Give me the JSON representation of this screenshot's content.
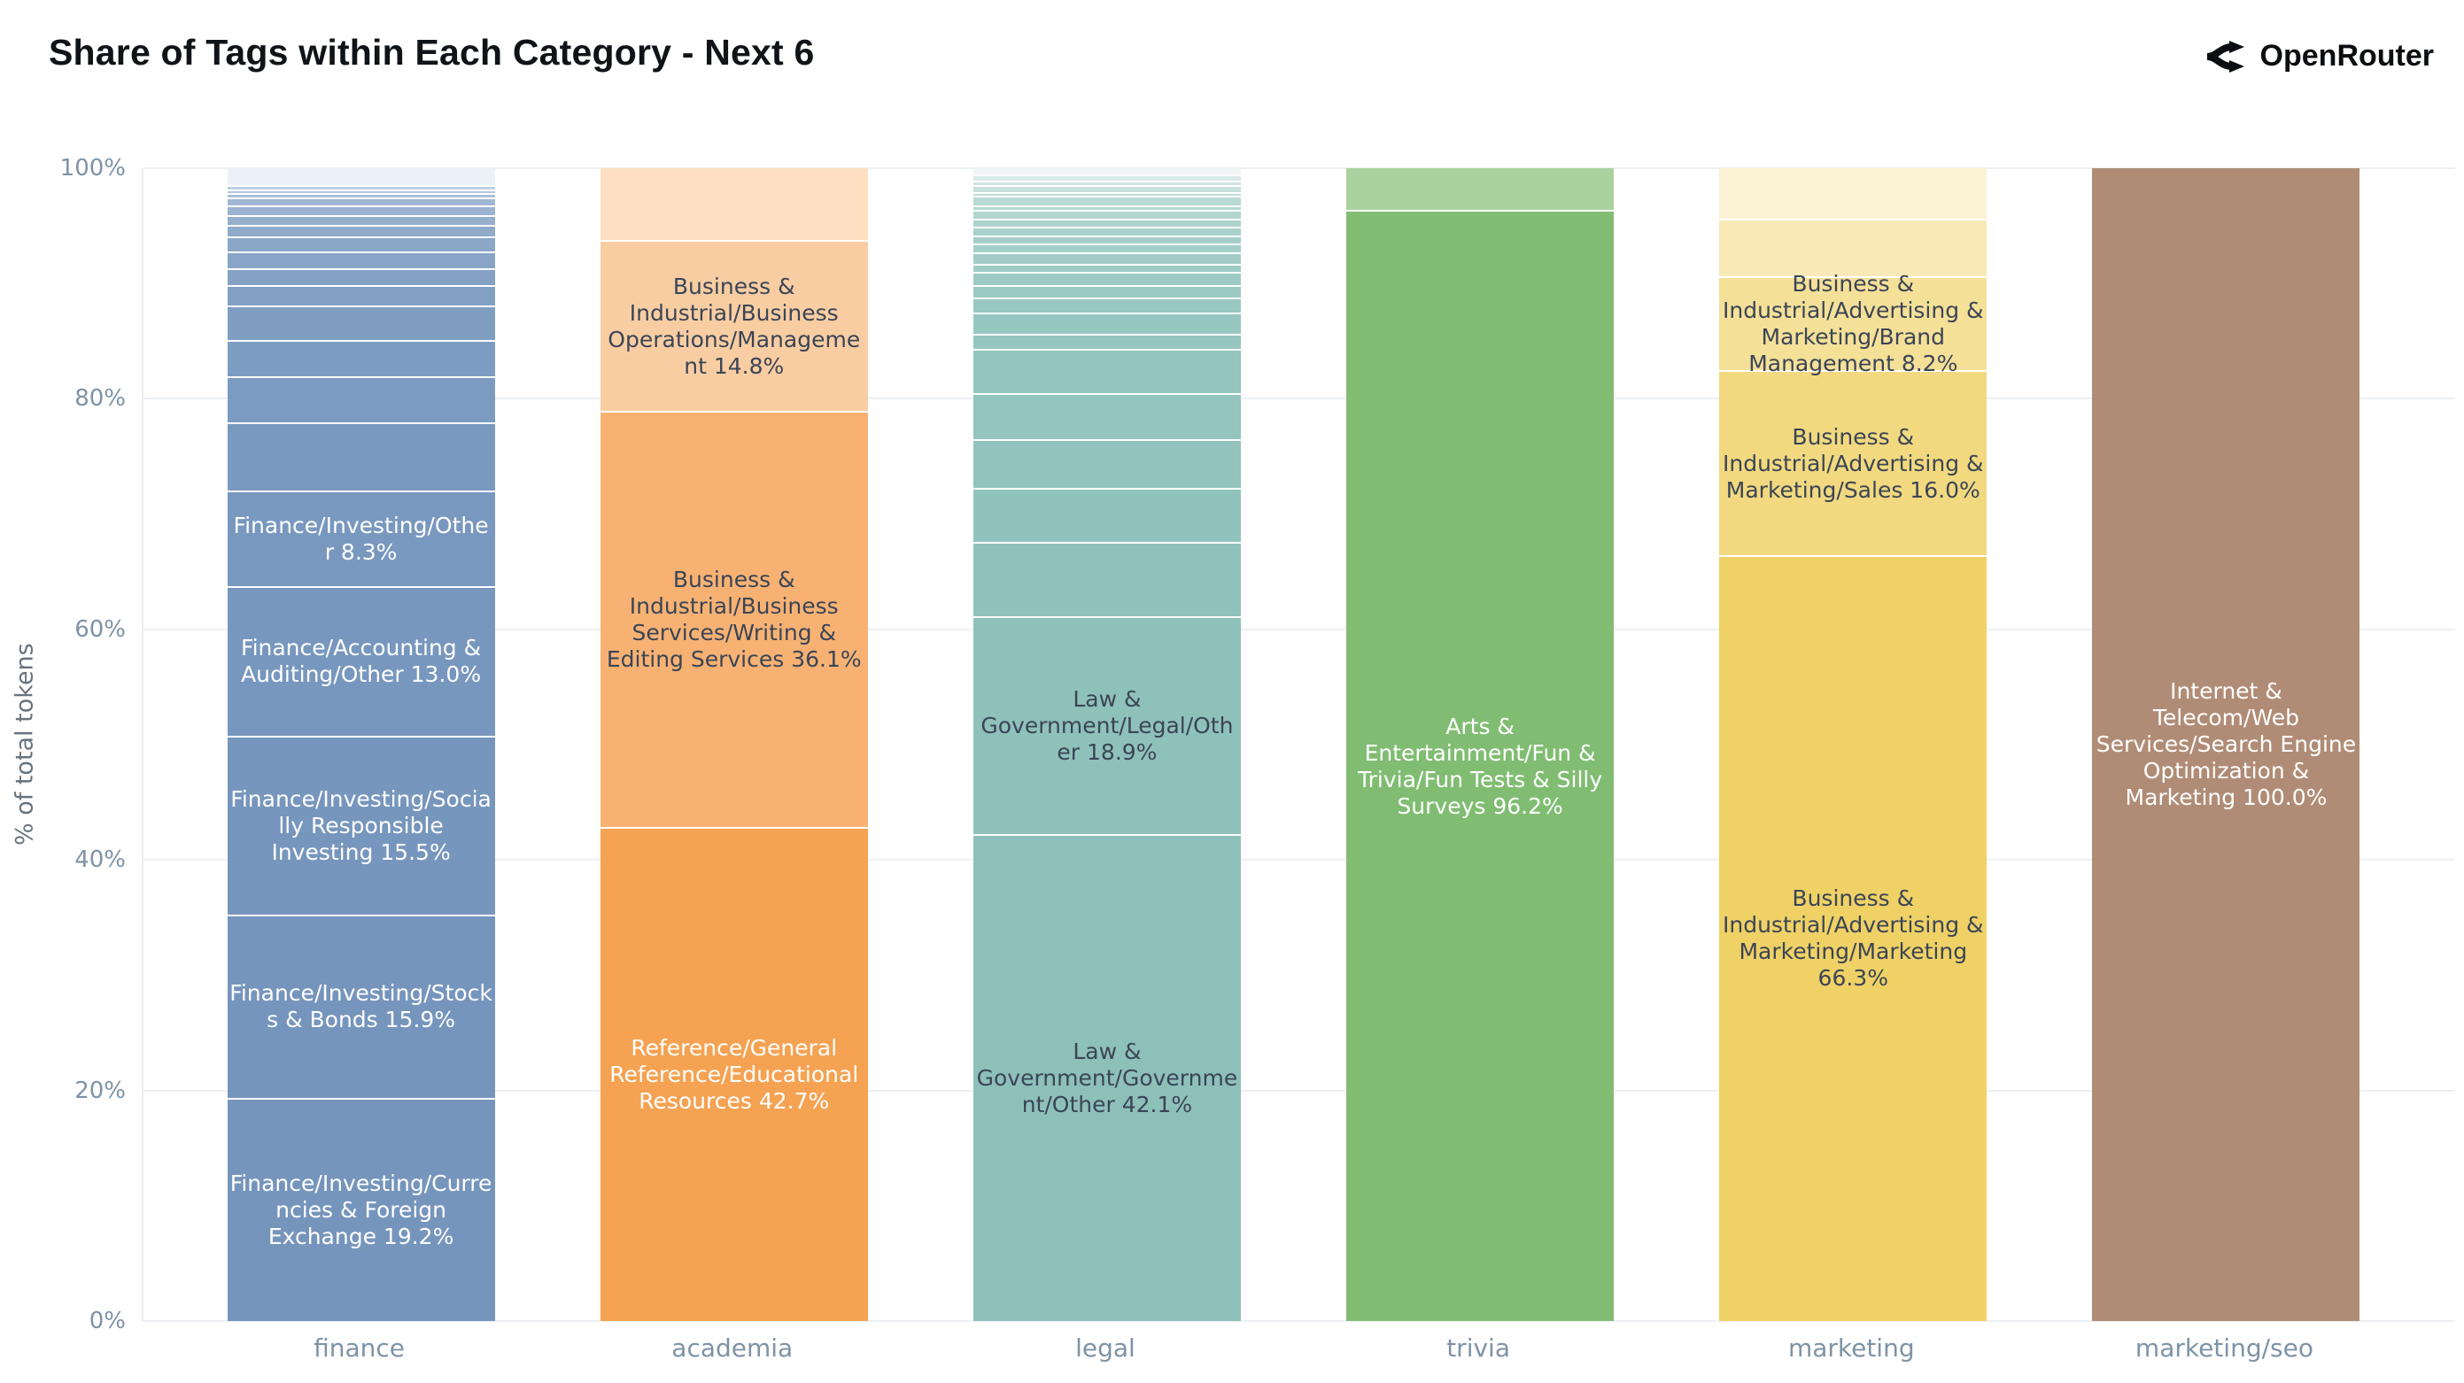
{
  "header": {
    "title": "Share of Tags within Each Category - Next 6",
    "brand": "OpenRouter"
  },
  "chart_data": {
    "type": "bar",
    "subtype": "stacked-percent",
    "title": "Share of Tags within Each Category - Next 6",
    "xlabel": "",
    "ylabel": "% of total tokens",
    "ylim": [
      0,
      100
    ],
    "yticks": [
      "0%",
      "20%",
      "40%",
      "60%",
      "80%",
      "100%"
    ],
    "grid": true,
    "legend": "none (labels drawn inside segments)",
    "categories": [
      "finance",
      "academia",
      "legal",
      "trivia",
      "marketing",
      "marketing/seo"
    ],
    "bars": [
      {
        "category": "finance",
        "segments": [
          {
            "value": 1.6,
            "label": "",
            "color": "#ecf1f7"
          },
          {
            "value": 0.4,
            "label": "",
            "color": "#bdcfe2"
          },
          {
            "value": 0.3,
            "label": "",
            "color": "#b2c6dc"
          },
          {
            "value": 0.4,
            "label": "",
            "color": "#aac0d8"
          },
          {
            "value": 0.7,
            "label": "",
            "color": "#a1b8d3"
          },
          {
            "value": 0.8,
            "label": "",
            "color": "#9bb3d0"
          },
          {
            "value": 0.9,
            "label": "",
            "color": "#95afcd"
          },
          {
            "value": 1.0,
            "label": "",
            "color": "#90abca"
          },
          {
            "value": 1.3,
            "label": "",
            "color": "#8ba7c8"
          },
          {
            "value": 1.4,
            "label": "",
            "color": "#88a4c6"
          },
          {
            "value": 1.5,
            "label": "",
            "color": "#85a2c5"
          },
          {
            "value": 1.8,
            "label": "",
            "color": "#82a0c3"
          },
          {
            "value": 3.0,
            "label": "",
            "color": "#7f9ec2"
          },
          {
            "value": 3.1,
            "label": "",
            "color": "#7d9cc1"
          },
          {
            "value": 4.0,
            "label": "",
            "color": "#7b9bc0"
          },
          {
            "value": 5.9,
            "label": "",
            "color": "#7a99bf"
          },
          {
            "value": 8.3,
            "label": "Finance/Investing/Other 8.3%",
            "color": "#7998bf",
            "text": "#ffffff"
          },
          {
            "value": 13.0,
            "label": "Finance/Accounting & Auditing/Other 13.0%",
            "color": "#7897be",
            "text": "#ffffff"
          },
          {
            "value": 15.5,
            "label": "Finance/Investing/Socially Responsible Investing 15.5%",
            "color": "#7796bd",
            "text": "#ffffff"
          },
          {
            "value": 15.9,
            "label": "Finance/Investing/Stocks & Bonds 15.9%",
            "color": "#7695bd",
            "text": "#ffffff"
          },
          {
            "value": 19.2,
            "label": "Finance/Investing/Currencies & Foreign Exchange 19.2%",
            "color": "#7695bc",
            "text": "#ffffff"
          }
        ]
      },
      {
        "category": "academia",
        "segments": [
          {
            "value": 6.4,
            "label": "",
            "color": "#fcdfc0"
          },
          {
            "value": 14.8,
            "label": "Business & Industrial/Business Operations/Management 14.8%",
            "color": "#f9cda2",
            "text": "#3b4556"
          },
          {
            "value": 36.1,
            "label": "Business & Industrial/Business Services/Writing & Editing Services 36.1%",
            "color": "#f7b273",
            "text": "#3b4556"
          },
          {
            "value": 42.7,
            "label": "Reference/General Reference/Educational Resources 42.7%",
            "color": "#f5a252",
            "text": "#ffffff"
          }
        ]
      },
      {
        "category": "legal",
        "segments": [
          {
            "value": 0.7,
            "label": "",
            "color": "#eef5f4"
          },
          {
            "value": 0.5,
            "label": "",
            "color": "#d9eae7"
          },
          {
            "value": 0.45,
            "label": "",
            "color": "#cfe4e1"
          },
          {
            "value": 0.55,
            "label": "",
            "color": "#c7e0dc"
          },
          {
            "value": 0.35,
            "label": "",
            "color": "#c0dcd8"
          },
          {
            "value": 0.85,
            "label": "",
            "color": "#badad5"
          },
          {
            "value": 0.4,
            "label": "",
            "color": "#b5d7d2"
          },
          {
            "value": 0.7,
            "label": "",
            "color": "#b1d5cf"
          },
          {
            "value": 0.7,
            "label": "",
            "color": "#add3cd"
          },
          {
            "value": 0.8,
            "label": "",
            "color": "#aad1cb"
          },
          {
            "value": 0.65,
            "label": "",
            "color": "#a7cfc9"
          },
          {
            "value": 0.8,
            "label": "",
            "color": "#a4cec8"
          },
          {
            "value": 1.0,
            "label": "",
            "color": "#a1ccc6"
          },
          {
            "value": 0.7,
            "label": "",
            "color": "#9fcbc5"
          },
          {
            "value": 1.15,
            "label": "",
            "color": "#9dcac4"
          },
          {
            "value": 1.1,
            "label": "",
            "color": "#9bc9c3"
          },
          {
            "value": 1.25,
            "label": "",
            "color": "#99c8c2"
          },
          {
            "value": 1.85,
            "label": "",
            "color": "#97c7c1"
          },
          {
            "value": 1.3,
            "label": "",
            "color": "#96c6c0"
          },
          {
            "value": 3.9,
            "label": "",
            "color": "#94c5bf"
          },
          {
            "value": 4.0,
            "label": "",
            "color": "#93c4be"
          },
          {
            "value": 4.2,
            "label": "",
            "color": "#92c3bd"
          },
          {
            "value": 4.7,
            "label": "",
            "color": "#91c3bd"
          },
          {
            "value": 6.4,
            "label": "",
            "color": "#90c2bc"
          },
          {
            "value": 18.9,
            "label": "Law & Government/Legal/Other 18.9%",
            "color": "#8fc1bb",
            "text": "#3b4556"
          },
          {
            "value": 42.1,
            "label": "Law & Government/Government/Other 42.1%",
            "color": "#8ec0ba",
            "text": "#3b4556"
          }
        ]
      },
      {
        "category": "trivia",
        "segments": [
          {
            "value": 3.8,
            "label": "",
            "color": "#aad29e"
          },
          {
            "value": 96.2,
            "label": "Arts & Entertainment/Fun & Trivia/Fun Tests & Silly Surveys 96.2%",
            "color": "#80bd72",
            "text": "#ffffff"
          }
        ]
      },
      {
        "category": "marketing",
        "segments": [
          {
            "value": 4.5,
            "label": "",
            "color": "#fbf2d3"
          },
          {
            "value": 5.0,
            "label": "",
            "color": "#f8e9b7"
          },
          {
            "value": 8.2,
            "label": "Business & Industrial/Advertising & Marketing/Brand Management 8.2%",
            "color": "#f5e098",
            "text": "#3b4556"
          },
          {
            "value": 16.0,
            "label": "Business & Industrial/Advertising & Marketing/Sales 16.0%",
            "color": "#f2d97f",
            "text": "#3b4556"
          },
          {
            "value": 66.3,
            "label": "Business & Industrial/Advertising & Marketing/Marketing 66.3%",
            "color": "#efd166",
            "text": "#3b4556"
          }
        ]
      },
      {
        "category": "marketing/seo",
        "segments": [
          {
            "value": 100.0,
            "label": "Internet & Telecom/Web Services/Search Engine Optimization & Marketing 100.0%",
            "color": "#b08c76",
            "text": "#ffffff"
          }
        ]
      }
    ]
  }
}
